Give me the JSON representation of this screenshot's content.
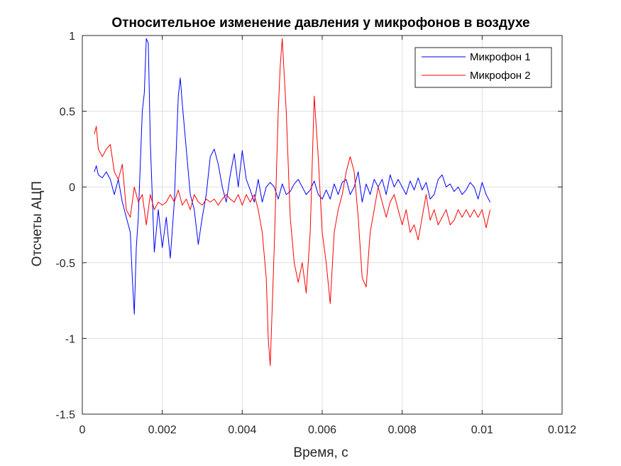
{
  "chart_data": {
    "type": "line",
    "title": "Относительное изменение давления у микрофонов в воздухе",
    "xlabel": "Время, с",
    "ylabel": "Отсчеты АЦП",
    "xlim": [
      0,
      0.012
    ],
    "ylim": [
      -1.5,
      1
    ],
    "xticks": [
      0,
      0.002,
      0.004,
      0.006,
      0.008,
      0.01,
      0.012
    ],
    "xtick_labels": [
      "0",
      "0.002",
      "0.004",
      "0.006",
      "0.008",
      "0.01",
      "0.012"
    ],
    "yticks": [
      -1.5,
      -1,
      -0.5,
      0,
      0.5,
      1
    ],
    "ytick_labels": [
      "-1.5",
      "-1",
      "-0.5",
      "0",
      "0.5",
      "1"
    ],
    "grid": true,
    "legend_position": "top-right",
    "series": [
      {
        "name": "Микрофон 1",
        "color": "#0000ff",
        "x": [
          0.0003,
          0.00035,
          0.0004,
          0.0005,
          0.0006,
          0.0007,
          0.0008,
          0.0009,
          0.001,
          0.0011,
          0.0012,
          0.00125,
          0.0013,
          0.00135,
          0.0014,
          0.0015,
          0.00155,
          0.0016,
          0.00165,
          0.0017,
          0.0018,
          0.0019,
          0.002,
          0.0021,
          0.0022,
          0.0023,
          0.0024,
          0.00245,
          0.0025,
          0.0026,
          0.0027,
          0.0028,
          0.0029,
          0.003,
          0.0031,
          0.0032,
          0.0033,
          0.0034,
          0.0035,
          0.0036,
          0.0037,
          0.0038,
          0.0039,
          0.004,
          0.0041,
          0.0042,
          0.0043,
          0.0044,
          0.0045,
          0.0046,
          0.0047,
          0.0048,
          0.0049,
          0.005,
          0.0051,
          0.0052,
          0.0053,
          0.0054,
          0.0055,
          0.0056,
          0.0057,
          0.0058,
          0.0059,
          0.006,
          0.0061,
          0.0062,
          0.0063,
          0.0064,
          0.0065,
          0.0066,
          0.0067,
          0.0068,
          0.0069,
          0.007,
          0.0071,
          0.0072,
          0.0073,
          0.0074,
          0.0075,
          0.0076,
          0.0077,
          0.0078,
          0.0079,
          0.008,
          0.0081,
          0.0082,
          0.0083,
          0.0084,
          0.0085,
          0.0086,
          0.0087,
          0.0088,
          0.0089,
          0.009,
          0.0091,
          0.0092,
          0.0093,
          0.0094,
          0.0095,
          0.0096,
          0.0097,
          0.0098,
          0.0099,
          0.01,
          0.0101,
          0.0102
        ],
        "y": [
          0.1,
          0.14,
          0.08,
          0.06,
          0.1,
          0.05,
          -0.05,
          0.05,
          -0.1,
          -0.2,
          -0.3,
          -0.6,
          -0.84,
          -0.4,
          -0.2,
          0.5,
          0.62,
          0.98,
          0.95,
          0.3,
          -0.43,
          -0.15,
          -0.4,
          -0.2,
          -0.47,
          -0.1,
          0.6,
          0.72,
          0.55,
          0.25,
          -0.05,
          -0.15,
          -0.38,
          -0.2,
          -0.05,
          0.2,
          0.25,
          0.15,
          0.0,
          -0.1,
          0.08,
          0.22,
          0.0,
          0.24,
          0.05,
          -0.02,
          -0.1,
          0.05,
          -0.1,
          0.0,
          0.03,
          0.0,
          -0.08,
          0.02,
          -0.05,
          -0.03,
          0.02,
          0.05,
          0.0,
          -0.05,
          -0.02,
          0.04,
          -0.05,
          -0.08,
          -0.02,
          -0.08,
          0.02,
          -0.05,
          0.03,
          0.05,
          -0.05,
          0.0,
          0.1,
          -0.1,
          0.02,
          -0.05,
          0.05,
          0.0,
          0.05,
          -0.05,
          0.08,
          0.0,
          0.05,
          0.0,
          -0.05,
          0.04,
          -0.02,
          0.06,
          -0.02,
          0.03,
          -0.08,
          -0.05,
          0.05,
          0.08,
          0.0,
          0.02,
          -0.03,
          0.0,
          -0.05,
          -0.02,
          0.03,
          0.0,
          -0.08,
          0.03,
          -0.05,
          -0.1
        ]
      },
      {
        "name": "Микрофон 2",
        "color": "#ff0000",
        "x": [
          0.0003,
          0.00035,
          0.0004,
          0.0005,
          0.0006,
          0.0007,
          0.0008,
          0.0009,
          0.001,
          0.0011,
          0.0012,
          0.0013,
          0.0014,
          0.0015,
          0.0016,
          0.0017,
          0.0018,
          0.0019,
          0.002,
          0.0021,
          0.0022,
          0.0023,
          0.0024,
          0.0025,
          0.0026,
          0.0027,
          0.0028,
          0.0029,
          0.003,
          0.0031,
          0.0032,
          0.0033,
          0.0034,
          0.0035,
          0.0036,
          0.0037,
          0.0038,
          0.0039,
          0.004,
          0.0041,
          0.0042,
          0.0043,
          0.0044,
          0.0045,
          0.0046,
          0.00465,
          0.0047,
          0.0048,
          0.0049,
          0.00495,
          0.005,
          0.0051,
          0.0052,
          0.0053,
          0.0054,
          0.0055,
          0.0056,
          0.0057,
          0.0058,
          0.0059,
          0.006,
          0.0061,
          0.0062,
          0.0063,
          0.0064,
          0.0065,
          0.0066,
          0.0067,
          0.0068,
          0.0069,
          0.007,
          0.0071,
          0.0072,
          0.0073,
          0.0074,
          0.0075,
          0.0076,
          0.0077,
          0.0078,
          0.0079,
          0.008,
          0.0081,
          0.0082,
          0.0083,
          0.0084,
          0.0085,
          0.0086,
          0.0087,
          0.0088,
          0.0089,
          0.009,
          0.0091,
          0.0092,
          0.0093,
          0.0094,
          0.0095,
          0.0096,
          0.0097,
          0.0098,
          0.0099,
          0.01,
          0.0101,
          0.0102
        ],
        "y": [
          0.35,
          0.4,
          0.25,
          0.2,
          0.25,
          0.28,
          0.1,
          0.05,
          0.15,
          -0.15,
          -0.2,
          0.0,
          -0.1,
          -0.05,
          -0.25,
          -0.05,
          -0.15,
          -0.1,
          -0.12,
          -0.1,
          -0.05,
          -0.1,
          -0.02,
          -0.12,
          -0.08,
          -0.15,
          -0.05,
          -0.1,
          -0.12,
          -0.08,
          -0.1,
          -0.08,
          -0.12,
          -0.08,
          -0.05,
          -0.08,
          -0.1,
          -0.05,
          -0.12,
          -0.05,
          -0.1,
          -0.05,
          -0.15,
          -0.3,
          -0.6,
          -1.0,
          -1.18,
          -0.4,
          0.5,
          0.8,
          0.98,
          0.5,
          -0.2,
          -0.5,
          -0.63,
          -0.5,
          -0.7,
          -0.3,
          0.6,
          0.2,
          -0.3,
          -0.5,
          -0.77,
          -0.3,
          -0.15,
          -0.05,
          0.1,
          0.2,
          0.1,
          -0.2,
          -0.6,
          -0.66,
          -0.3,
          -0.15,
          0.0,
          -0.1,
          -0.2,
          -0.1,
          -0.05,
          -0.15,
          -0.25,
          -0.15,
          -0.3,
          -0.25,
          -0.35,
          -0.2,
          -0.05,
          -0.22,
          -0.15,
          -0.25,
          -0.2,
          -0.15,
          -0.25,
          -0.22,
          -0.15,
          -0.2,
          -0.15,
          -0.2,
          -0.15,
          -0.2,
          -0.15,
          -0.27,
          -0.15
        ]
      }
    ]
  }
}
